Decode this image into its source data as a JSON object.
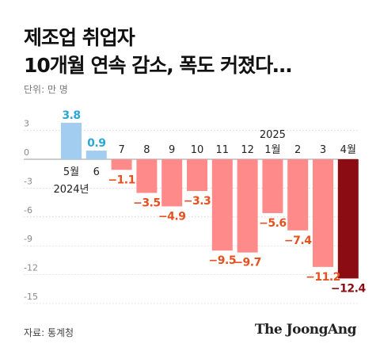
{
  "chart_data": {
    "type": "bar",
    "title_lines": [
      "제조업 취업자",
      "10개월 연속 감소, 폭도 커졌다…"
    ],
    "unit_label": "단위: 만 명",
    "source": "자료: 통계청",
    "brand": "The JoongAng",
    "ylim": [
      -15,
      3.8
    ],
    "yticks": [
      "3",
      "0",
      "-3",
      "-6",
      "-9",
      "-12",
      "-15"
    ],
    "ytick_values": [
      3,
      0,
      -3,
      -6,
      -9,
      -12,
      -15
    ],
    "categories": [
      "5월",
      "6",
      "7",
      "8",
      "9",
      "10",
      "11",
      "12",
      "1월",
      "2",
      "3",
      "4월"
    ],
    "values": [
      3.8,
      0.9,
      -1.1,
      -3.5,
      -4.9,
      -3.3,
      -9.5,
      -9.7,
      -5.6,
      -7.4,
      -11.2,
      -12.4
    ],
    "value_labels": [
      "3.8",
      "0.9",
      "−1.1",
      "−3.5",
      "−4.9",
      "−3.3",
      "−9.5",
      "−9.7",
      "−5.6",
      "−7.4",
      "−11.2",
      "−12.4"
    ],
    "year_labels": [
      {
        "index": 0,
        "text": "2024년"
      },
      {
        "index": 8,
        "text": "2025"
      }
    ],
    "colors": {
      "positive": "#a3cdf0",
      "positive_label": "#2aa7d6",
      "negative": "#ff8a8a",
      "negative_label": "#e5511f",
      "highlight": "#8b0c13",
      "highlight_label": "#8b0c13"
    },
    "highlight_index": 11,
    "grid": true
  }
}
